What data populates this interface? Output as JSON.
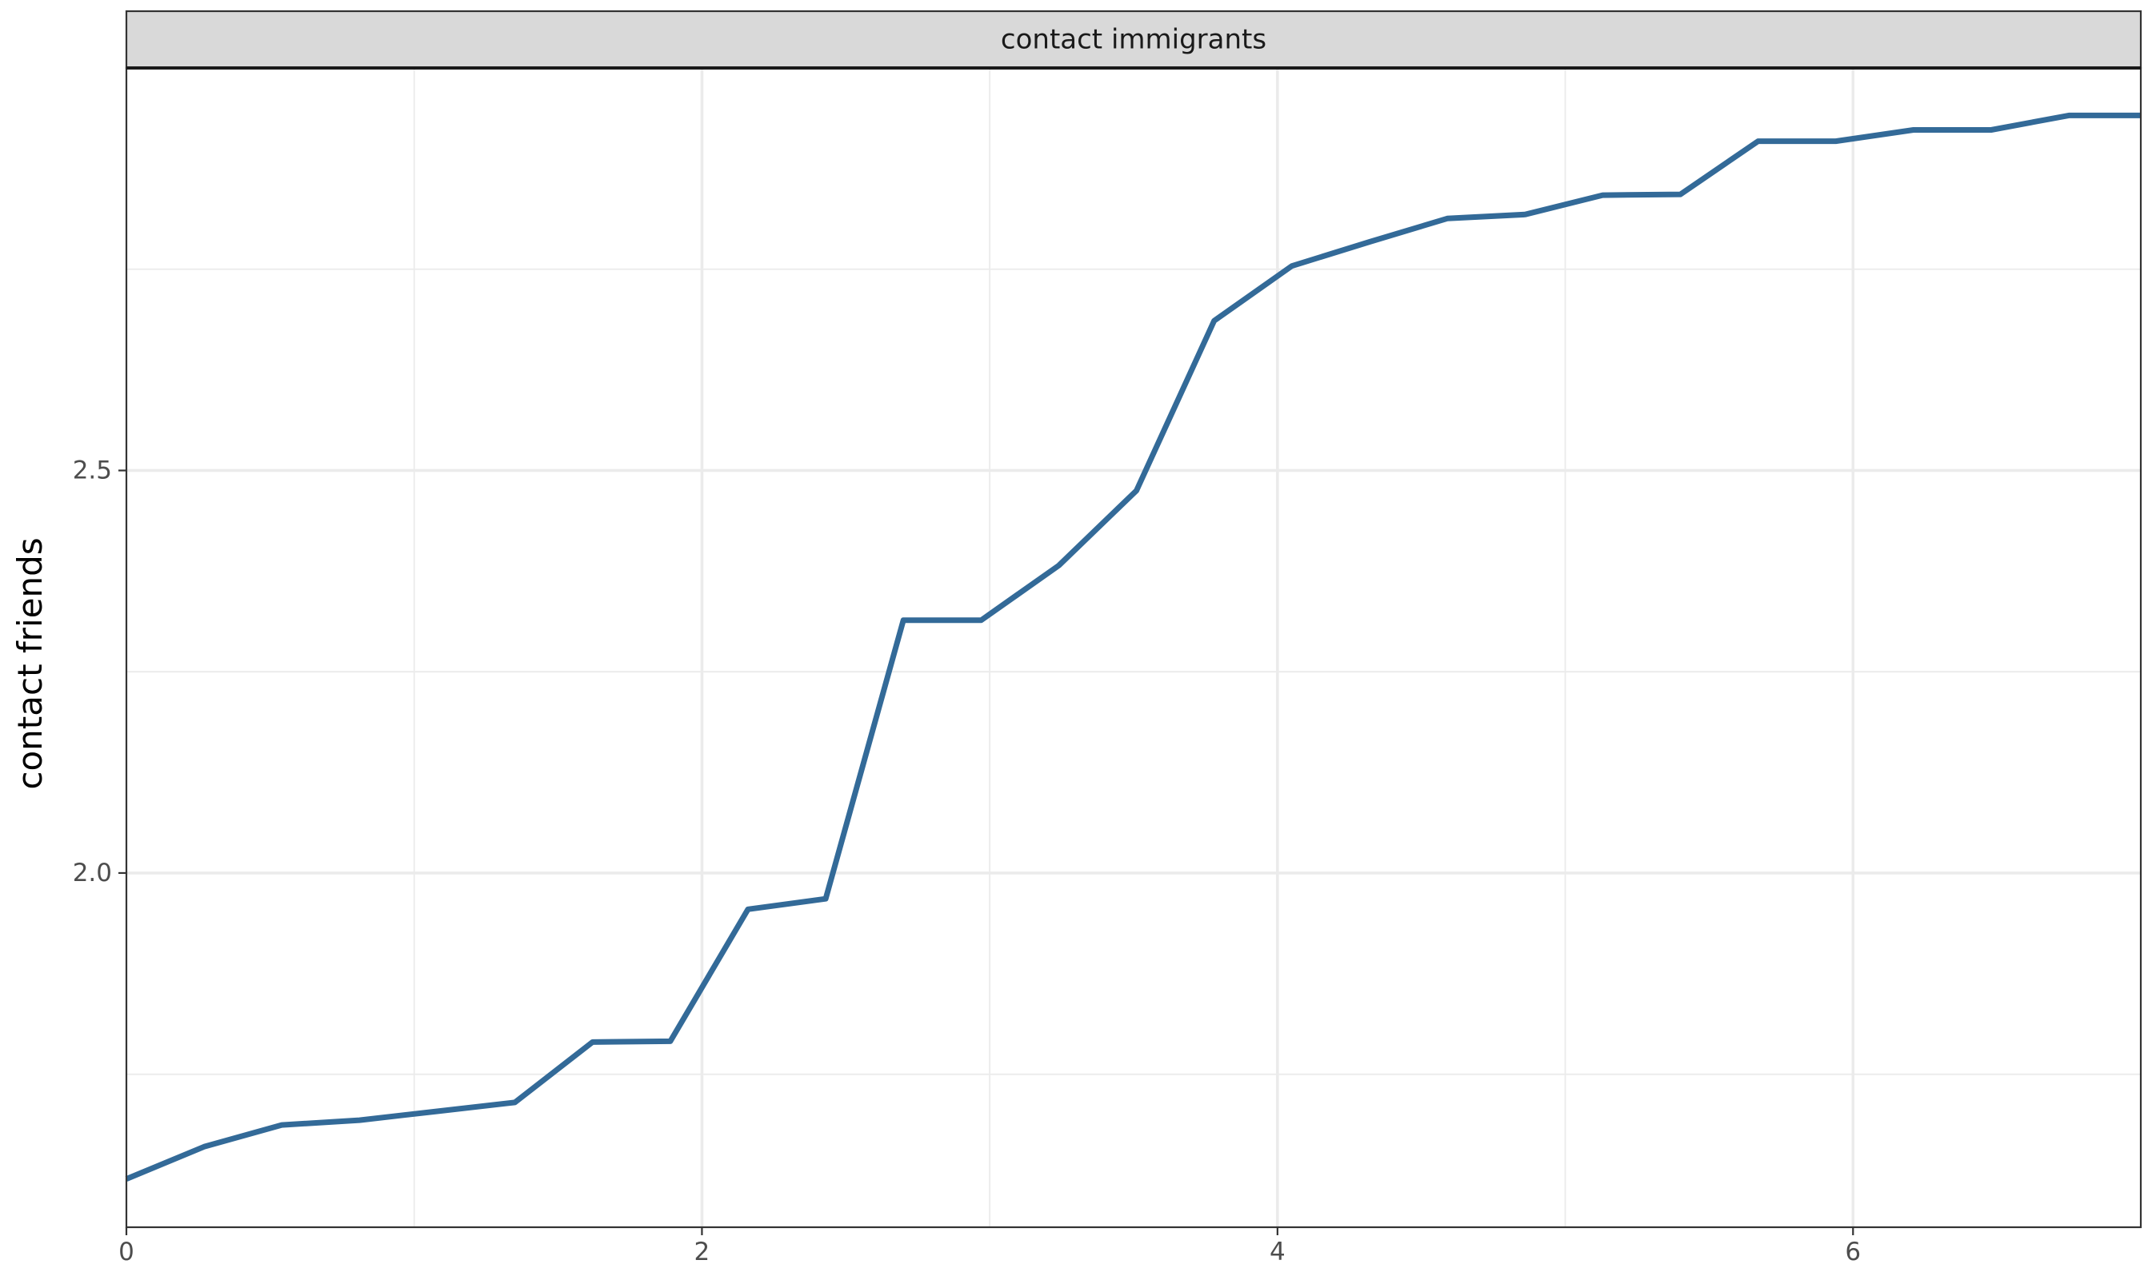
{
  "chart_data": {
    "type": "line",
    "facet_label": "contact immigrants",
    "xlabel": "",
    "ylabel": "contact friends",
    "xlim": [
      0,
      7
    ],
    "ylim": [
      1.56,
      3.0
    ],
    "x_ticks": [
      {
        "value": 0,
        "label": "0"
      },
      {
        "value": 2,
        "label": "2"
      },
      {
        "value": 4,
        "label": "4"
      },
      {
        "value": 6,
        "label": "6"
      }
    ],
    "y_ticks": [
      {
        "value": 2.0,
        "label": "2.0"
      },
      {
        "value": 2.5,
        "label": "2.5"
      }
    ],
    "x_minor": [
      1,
      3,
      5
    ],
    "y_minor": [
      1.75,
      2.25,
      2.75
    ],
    "grid": true,
    "line_color": "#336a98",
    "series": [
      {
        "x": [
          0,
          0.27,
          0.54,
          0.81,
          1.08,
          1.35,
          1.62,
          1.89,
          2.16,
          2.43,
          2.7,
          2.97,
          3.24,
          3.51,
          3.78,
          4.05,
          4.32,
          4.59,
          4.86,
          5.13,
          5.4,
          5.67,
          5.94,
          6.21,
          6.48,
          6.75,
          7.0
        ],
        "y": [
          1.62,
          1.66,
          1.687,
          1.693,
          1.704,
          1.715,
          1.79,
          1.791,
          1.955,
          1.968,
          2.314,
          2.314,
          2.382,
          2.475,
          2.686,
          2.754,
          2.784,
          2.813,
          2.818,
          2.842,
          2.843,
          2.909,
          2.909,
          2.923,
          2.923,
          2.941,
          2.941
        ]
      }
    ]
  }
}
